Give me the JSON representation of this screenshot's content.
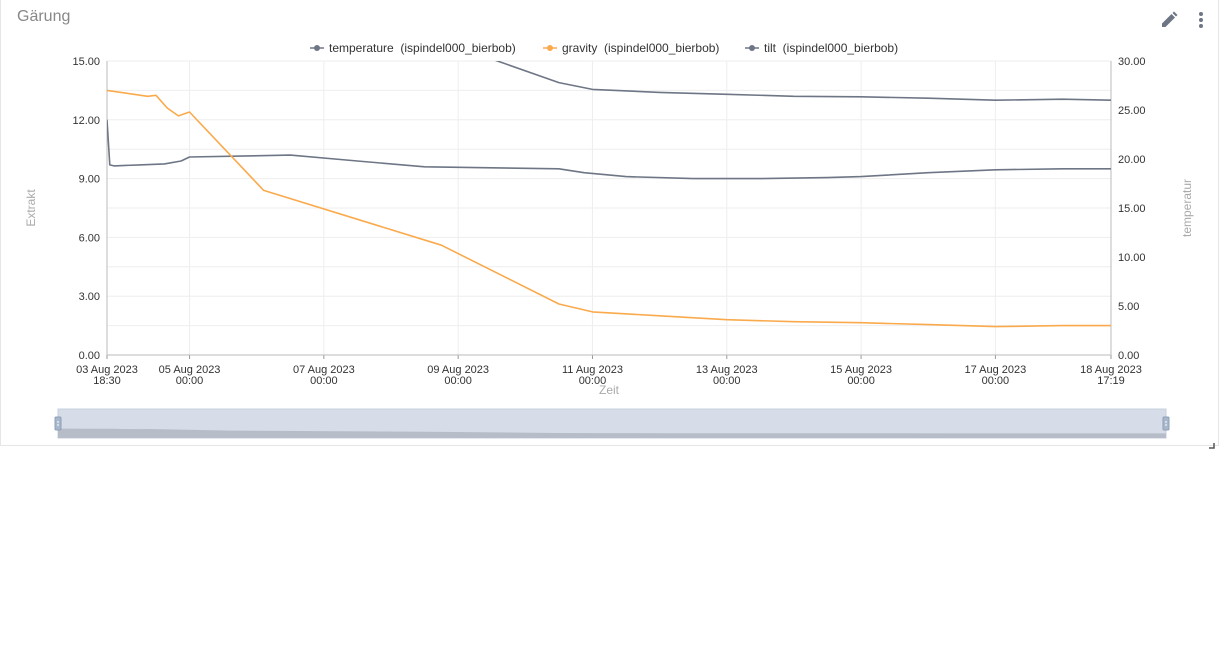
{
  "card": {
    "title": "Gärung",
    "edit_icon": "pencil-icon",
    "menu_icon": "more-vertical-icon"
  },
  "colors": {
    "temperature": "#6e7685",
    "gravity": "#faaa4c",
    "tilt": "#6e7685",
    "grid": "#eeeeee",
    "axis_text": "#333333",
    "axis_title": "#aaaaaa",
    "zoom_fill": "#d6dce8"
  },
  "chart_data": {
    "type": "line",
    "title": "",
    "xlabel": "Zeit",
    "ylabel": "Extrakt",
    "y2label": "temperatur",
    "ylim": [
      0,
      15
    ],
    "y2lim": [
      0,
      30
    ],
    "x_range": [
      "2023-08-03 18:30",
      "2023-08-18 17:19"
    ],
    "grid": true,
    "legend_position": "top-center",
    "y_ticks": [
      "0.00",
      "3.00",
      "6.00",
      "9.00",
      "12.00",
      "15.00"
    ],
    "y2_ticks": [
      "0.00",
      "5.00",
      "10.00",
      "15.00",
      "20.00",
      "25.00",
      "30.00"
    ],
    "x_ticks": [
      {
        "date": "03 Aug 2023",
        "time": "18:30",
        "x": "2023-08-03 18:30"
      },
      {
        "date": "05 Aug 2023",
        "time": "00:00",
        "x": "2023-08-05 00:00"
      },
      {
        "date": "07 Aug 2023",
        "time": "00:00",
        "x": "2023-08-07 00:00"
      },
      {
        "date": "09 Aug 2023",
        "time": "00:00",
        "x": "2023-08-09 00:00"
      },
      {
        "date": "11 Aug 2023",
        "time": "00:00",
        "x": "2023-08-11 00:00"
      },
      {
        "date": "13 Aug 2023",
        "time": "00:00",
        "x": "2023-08-13 00:00"
      },
      {
        "date": "15 Aug 2023",
        "time": "00:00",
        "x": "2023-08-15 00:00"
      },
      {
        "date": "17 Aug 2023",
        "time": "00:00",
        "x": "2023-08-17 00:00"
      },
      {
        "date": "18 Aug 2023",
        "time": "17:19",
        "x": "2023-08-18 17:19"
      }
    ],
    "series": [
      {
        "name": "temperature  (ispindel000_bierbob)",
        "axis": "left",
        "x": [
          "2023-08-03 18:30",
          "2023-08-03 19:30",
          "2023-08-03 21:00",
          "2023-08-04 06:00",
          "2023-08-04 15:00",
          "2023-08-04 21:00",
          "2023-08-05 00:00",
          "2023-08-05 18:00",
          "2023-08-06 12:00",
          "2023-08-07 12:00",
          "2023-08-08 12:00",
          "2023-08-09 12:00",
          "2023-08-10 12:00",
          "2023-08-10 21:00",
          "2023-08-11 12:00",
          "2023-08-12 12:00",
          "2023-08-13 12:00",
          "2023-08-14 12:00",
          "2023-08-15 00:00",
          "2023-08-16 00:00",
          "2023-08-17 00:00",
          "2023-08-18 00:00",
          "2023-08-18 17:19"
        ],
        "y": [
          12.0,
          9.7,
          9.65,
          9.7,
          9.75,
          9.9,
          10.1,
          10.15,
          10.2,
          9.9,
          9.6,
          9.55,
          9.5,
          9.3,
          9.1,
          9.0,
          9.0,
          9.05,
          9.1,
          9.3,
          9.45,
          9.5,
          9.5
        ]
      },
      {
        "name": "gravity  (ispindel000_bierbob)",
        "axis": "left",
        "x": [
          "2023-08-03 18:30",
          "2023-08-04 09:00",
          "2023-08-04 12:00",
          "2023-08-04 16:00",
          "2023-08-04 20:00",
          "2023-08-05 00:00",
          "2023-08-06 02:30",
          "2023-08-08 18:00",
          "2023-08-10 12:00",
          "2023-08-11 00:00",
          "2023-08-12 00:00",
          "2023-08-13 00:00",
          "2023-08-14 00:00",
          "2023-08-15 00:00",
          "2023-08-16 00:00",
          "2023-08-17 00:00",
          "2023-08-18 00:00",
          "2023-08-18 17:19"
        ],
        "y": [
          13.5,
          13.2,
          13.25,
          12.6,
          12.2,
          12.4,
          8.4,
          5.6,
          2.6,
          2.2,
          2.0,
          1.8,
          1.7,
          1.65,
          1.55,
          1.45,
          1.5,
          1.5
        ]
      },
      {
        "name": "tilt  (ispindel000_bierbob)",
        "axis": "right",
        "x": [
          "2023-08-09 12:00",
          "2023-08-10 12:00",
          "2023-08-11 00:00",
          "2023-08-12 00:00",
          "2023-08-13 00:00",
          "2023-08-14 00:00",
          "2023-08-15 00:00",
          "2023-08-16 00:00",
          "2023-08-17 00:00",
          "2023-08-18 00:00",
          "2023-08-18 17:19"
        ],
        "y": [
          30.2,
          27.8,
          27.1,
          26.8,
          26.6,
          26.4,
          26.35,
          26.2,
          26.0,
          26.1,
          26.0
        ]
      }
    ]
  }
}
